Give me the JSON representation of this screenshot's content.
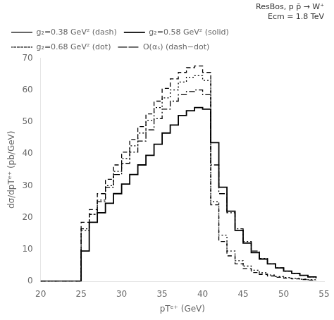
{
  "chart_data": {
    "type": "step",
    "xlabel": "pTᵉ⁺ (GeV)",
    "ylabel": "dσ/dpTᵉ⁺ (pb/GeV)",
    "annotations": [
      "ResBos, p p̄ → W⁺",
      "Ecm = 1.8 TeV"
    ],
    "bins": [
      20,
      21,
      22,
      23,
      24,
      25,
      26,
      27,
      28,
      29,
      30,
      31,
      32,
      33,
      34,
      35,
      36,
      37,
      38,
      39,
      40,
      41,
      42,
      43,
      44,
      45,
      46,
      47,
      48,
      49,
      50,
      51,
      52,
      53,
      54,
      55
    ],
    "series": [
      {
        "name": "g₂=0.38 GeV² (dash)",
        "color": "black",
        "line_style": "dashed",
        "values": [
          0,
          0,
          0,
          0,
          0,
          18.5,
          22.5,
          27.5,
          32.0,
          36.5,
          40.5,
          44.5,
          48.5,
          52.5,
          56.5,
          60.5,
          63.5,
          65.5,
          67.0,
          67.5,
          65.5,
          24.0,
          12.5,
          8.0,
          5.5,
          4.0,
          2.8,
          2.2,
          1.7,
          1.3,
          1.0,
          0.8,
          0.6,
          0.4,
          0.3
        ]
      },
      {
        "name": "g₂=0.58 GeV² (solid)",
        "color": "black",
        "line_style": "solid",
        "values": [
          0,
          0,
          0,
          0,
          0,
          9.5,
          18.5,
          21.5,
          24.5,
          27.5,
          30.5,
          33.5,
          36.5,
          39.5,
          43.0,
          46.5,
          49.0,
          52.0,
          53.5,
          54.5,
          54.0,
          43.5,
          29.5,
          22.0,
          16.0,
          12.0,
          9.0,
          7.0,
          5.5,
          4.2,
          3.2,
          2.5,
          1.9,
          1.4,
          1.0
        ]
      },
      {
        "name": "g₂=0.68 GeV² (dot)",
        "color": "black",
        "line_style": "dotted",
        "values": [
          0,
          0,
          0,
          0,
          0,
          16.0,
          21.0,
          25.5,
          30.0,
          34.5,
          38.5,
          42.5,
          46.5,
          50.5,
          54.5,
          57.5,
          60.0,
          62.5,
          64.0,
          64.5,
          63.0,
          25.0,
          14.5,
          9.5,
          6.5,
          4.8,
          3.5,
          2.7,
          2.0,
          1.5,
          1.2,
          0.9,
          0.7,
          0.5,
          0.4
        ]
      },
      {
        "name": "O(αₛ) (dash−dot)",
        "color": "black",
        "line_style": "dashdot",
        "values": [
          0,
          0,
          0,
          0,
          0,
          16.5,
          21.0,
          25.0,
          29.5,
          33.5,
          37.0,
          40.5,
          44.0,
          47.5,
          51.0,
          54.0,
          56.5,
          58.5,
          59.5,
          60.0,
          58.5,
          36.5,
          27.5,
          21.5,
          16.5,
          12.5,
          9.5,
          7.2,
          5.5,
          4.2,
          3.2,
          2.5,
          1.9,
          1.4,
          1.1
        ]
      }
    ],
    "xlim": [
      20,
      55
    ],
    "ylim": [
      0,
      70
    ],
    "xticks": [
      20,
      25,
      30,
      35,
      40,
      45,
      50,
      55
    ],
    "yticks": [
      0,
      10,
      20,
      30,
      40,
      50,
      60,
      70
    ],
    "grid": false,
    "legend": "upper left"
  }
}
